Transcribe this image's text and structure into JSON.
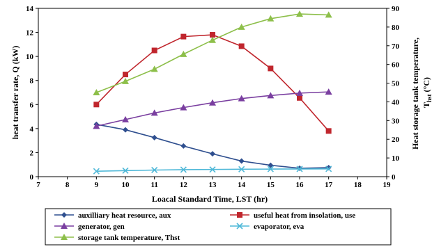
{
  "chart_data": {
    "type": "line",
    "xlabel": "Loacal Standard Time, LST (hr)",
    "ylabel_left": "heat transfer rate, Q (kW)",
    "ylabel_right_line1": "Heat storage tank temperature,",
    "ylabel_right_line2_main": "T",
    "ylabel_right_line2_sub": "hst",
    "ylabel_right_line2_unit": "(°C)",
    "xlim": [
      7,
      19
    ],
    "ylim_left": [
      0,
      14
    ],
    "ylim_right": [
      0,
      90
    ],
    "x_ticks": [
      "7",
      "8",
      "9",
      "10",
      "11",
      "12",
      "13",
      "14",
      "15",
      "16",
      "17",
      "18",
      "19"
    ],
    "y_left_ticks": [
      "0",
      "2",
      "4",
      "6",
      "8",
      "10",
      "12",
      "14"
    ],
    "y_right_ticks": [
      "0",
      "10",
      "20",
      "30",
      "40",
      "50",
      "60",
      "70",
      "80",
      "90"
    ],
    "legend_position": "bottom",
    "x": [
      9,
      10,
      11,
      12,
      13,
      14,
      15,
      16,
      17
    ],
    "series": [
      {
        "name": "auxilliary heat resource, aux",
        "axis": "left",
        "color": "#2f4f8f",
        "marker": "diamond",
        "values": [
          4.35,
          3.9,
          3.25,
          2.55,
          1.9,
          1.3,
          0.95,
          0.7,
          0.75
        ]
      },
      {
        "name": "useful heat from insolation, use",
        "axis": "left",
        "color": "#c0262d",
        "marker": "square",
        "values": [
          6.0,
          8.5,
          10.5,
          11.65,
          11.8,
          10.85,
          9.0,
          6.55,
          3.8
        ]
      },
      {
        "name": "generator, gen",
        "axis": "left",
        "color": "#7a3fa0",
        "marker": "triangle",
        "values": [
          4.2,
          4.75,
          5.3,
          5.75,
          6.15,
          6.5,
          6.75,
          6.95,
          7.05
        ]
      },
      {
        "name": "evaporator, eva",
        "axis": "left",
        "color": "#4fb8d8",
        "marker": "x",
        "values": [
          0.45,
          0.5,
          0.55,
          0.58,
          0.6,
          0.62,
          0.63,
          0.64,
          0.65
        ]
      },
      {
        "name": "storage tank temperature, Thst",
        "axis": "right",
        "color": "#8dbf4a",
        "marker": "triangle",
        "values": [
          45,
          51,
          57.5,
          65.5,
          73,
          80,
          84.5,
          87,
          86.5
        ]
      }
    ]
  }
}
